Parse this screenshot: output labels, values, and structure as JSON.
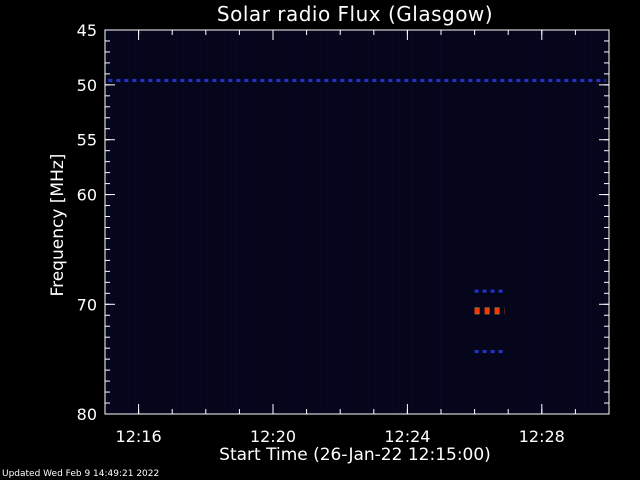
{
  "chart_data": {
    "type": "heatmap",
    "title": "Solar radio Flux (Glasgow)",
    "xlabel": "Start Time (26-Jan-22 12:15:00)",
    "ylabel": "Frequency [MHz]",
    "x_unit": "minutes after 12:00",
    "xlim": [
      15.0,
      30.0
    ],
    "x_ticks": [
      {
        "value": 16,
        "label": "12:16"
      },
      {
        "value": 20,
        "label": "12:20"
      },
      {
        "value": 24,
        "label": "12:24"
      },
      {
        "value": 28,
        "label": "12:28"
      }
    ],
    "ylim": [
      45,
      80
    ],
    "y_ticks": [
      {
        "value": 45,
        "label": "45"
      },
      {
        "value": 50,
        "label": "50"
      },
      {
        "value": 55,
        "label": "55"
      },
      {
        "value": 60,
        "label": "60"
      },
      {
        "value": 70,
        "label": "70"
      },
      {
        "value": 80,
        "label": "80"
      }
    ],
    "background_color": "#05051a",
    "features": [
      {
        "name": "50 MHz interference band",
        "x_start": 15.1,
        "x_end": 29.9,
        "frequency": 49.6,
        "intensity": "low",
        "color": "#2233cc"
      },
      {
        "name": "signal at ~70.6 MHz",
        "x_start": 26.0,
        "x_end": 26.9,
        "frequency": 70.6,
        "intensity": "high",
        "color": "#ff3300"
      },
      {
        "name": "signal at ~68.8 MHz",
        "x_start": 26.0,
        "x_end": 26.9,
        "frequency": 68.8,
        "intensity": "low",
        "color": "#2233cc"
      },
      {
        "name": "signal at ~74.3 MHz",
        "x_start": 26.0,
        "x_end": 26.9,
        "frequency": 74.3,
        "intensity": "low",
        "color": "#2233cc"
      }
    ]
  },
  "footer": {
    "updated": "Updated Wed Feb  9 14:49:21 2022"
  }
}
